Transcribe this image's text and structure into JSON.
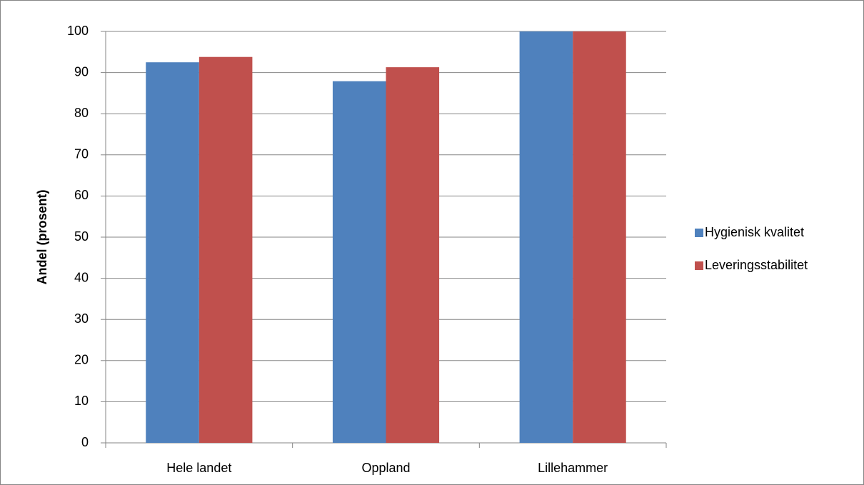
{
  "chart_data": {
    "type": "bar",
    "y_label": "Andel (prosent)",
    "categories": [
      "Hele landet",
      "Oppland",
      "Lillehammer"
    ],
    "series": [
      {
        "name": "Hygienisk kvalitet",
        "color": "#4f81bd",
        "values": [
          92.5,
          87.9,
          100
        ]
      },
      {
        "name": "Leveringsstabilitet",
        "color": "#c0504d",
        "values": [
          93.8,
          91.3,
          100
        ]
      }
    ],
    "ylim": [
      0,
      100
    ],
    "yticks": [
      0,
      10,
      20,
      30,
      40,
      50,
      60,
      70,
      80,
      90,
      100
    ],
    "grid": true,
    "legend": "right"
  }
}
